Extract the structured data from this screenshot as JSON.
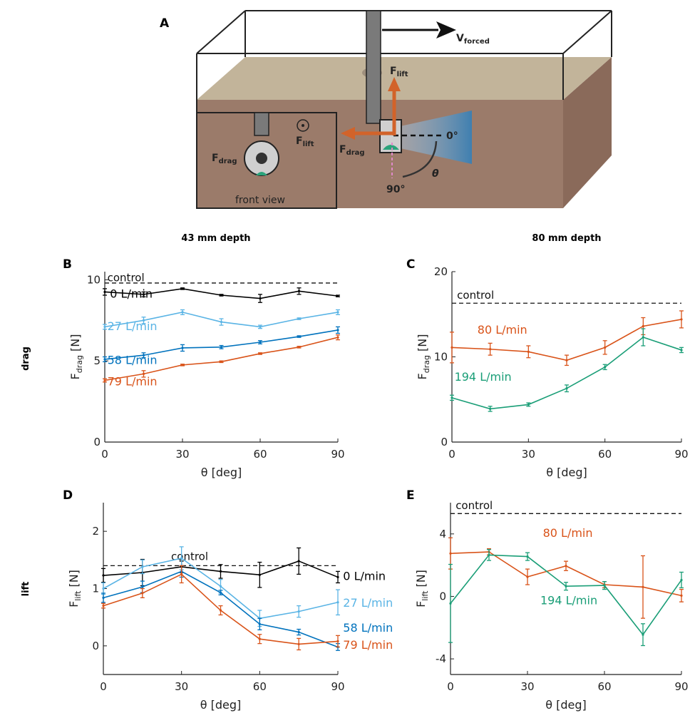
{
  "panel_labels": {
    "A": "A",
    "B": "B",
    "C": "C",
    "D": "D",
    "E": "E"
  },
  "column_headers": [
    "43 mm depth",
    "80 mm depth"
  ],
  "row_headers": [
    "drag",
    "lift"
  ],
  "diagram": {
    "v_label": "V",
    "v_sub": "forced",
    "flift_label": "F",
    "flift_sub": "lift",
    "fdrag_label": "F",
    "fdrag_sub": "drag",
    "front_flift_label": "F",
    "front_flift_sub": "lift",
    "front_fdrag_label": "F",
    "front_fdrag_sub": "drag",
    "angle0": "0°",
    "angle90": "90°",
    "theta": "θ",
    "front_view": "front view",
    "colors": {
      "sand": "#c2b49a",
      "soil": "#9b7b6a",
      "arrow": "#d2632a",
      "rod": "#7a7a7a",
      "green": "#2aa37a",
      "pink": "#e089c8",
      "light": "#5a8fb8"
    }
  },
  "chart_data": [
    {
      "id": "B",
      "type": "line",
      "xlabel": "θ [deg]",
      "ylabel": {
        "main": "F",
        "sub": "drag",
        "unit": " [N]"
      },
      "xlim": [
        0,
        90
      ],
      "ylim": [
        0,
        10.5
      ],
      "xticks": [
        0,
        30,
        60,
        90
      ],
      "yticks": [
        0,
        5,
        10
      ],
      "x": [
        0,
        15,
        30,
        45,
        60,
        75,
        90
      ],
      "control": {
        "label": "control",
        "value": 9.8
      },
      "series": [
        {
          "name": "0 L/min",
          "color": "#000000",
          "values": [
            9.25,
            9.1,
            9.45,
            9.05,
            8.85,
            9.3,
            9.0
          ],
          "err": [
            0.2,
            0.15,
            0.05,
            0.05,
            0.25,
            0.2,
            0.05
          ]
        },
        {
          "name": "27 L/min",
          "color": "#5ab4e5",
          "values": [
            7.1,
            7.5,
            8.0,
            7.4,
            7.1,
            7.6,
            8.0
          ],
          "err": [
            0.15,
            0.2,
            0.15,
            0.2,
            0.1,
            0.05,
            0.15
          ]
        },
        {
          "name": "58 L/min",
          "color": "#0072bd",
          "values": [
            5.1,
            5.35,
            5.8,
            5.85,
            6.15,
            6.5,
            6.9
          ],
          "err": [
            0.15,
            0.15,
            0.2,
            0.1,
            0.1,
            0.05,
            0.2
          ]
        },
        {
          "name": "79 L/min",
          "color": "#d95319",
          "values": [
            3.8,
            4.2,
            4.75,
            4.95,
            5.45,
            5.85,
            6.45
          ],
          "err": [
            0.1,
            0.2,
            0.05,
            0.05,
            0.05,
            0.05,
            0.15
          ]
        }
      ]
    },
    {
      "id": "C",
      "type": "line",
      "xlabel": "θ [deg]",
      "ylabel": {
        "main": "F",
        "sub": "drag",
        "unit": " [N]"
      },
      "xlim": [
        0,
        90
      ],
      "ylim": [
        0,
        20
      ],
      "xticks": [
        0,
        30,
        60,
        90
      ],
      "yticks": [
        0,
        10,
        20
      ],
      "x": [
        0,
        15,
        30,
        45,
        60,
        75,
        90
      ],
      "control": {
        "label": "control",
        "value": 16.3
      },
      "series": [
        {
          "name": "80 L/min",
          "color": "#d95319",
          "values": [
            11.1,
            10.9,
            10.6,
            9.6,
            11.1,
            13.6,
            14.4
          ],
          "err": [
            1.8,
            0.7,
            0.7,
            0.6,
            0.8,
            1.0,
            1.0
          ]
        },
        {
          "name": "194 L/min",
          "color": "#1a9e77",
          "values": [
            5.2,
            3.9,
            4.4,
            6.3,
            8.8,
            12.3,
            10.8
          ],
          "err": [
            0.3,
            0.3,
            0.2,
            0.4,
            0.3,
            1.0,
            0.3
          ]
        }
      ]
    },
    {
      "id": "D",
      "type": "line",
      "xlabel": "θ [deg]",
      "ylabel": {
        "main": "F",
        "sub": "lift",
        "unit": " [N]"
      },
      "xlim": [
        0,
        90
      ],
      "ylim": [
        -0.5,
        2.5
      ],
      "xticks": [
        0,
        30,
        60,
        90
      ],
      "yticks": [
        0,
        1,
        2
      ],
      "x": [
        0,
        15,
        30,
        45,
        60,
        75,
        90
      ],
      "control": {
        "label": "control",
        "value": 1.4
      },
      "series": [
        {
          "name": "0 L/min",
          "color": "#000000",
          "values": [
            1.23,
            1.28,
            1.38,
            1.3,
            1.24,
            1.48,
            1.2
          ],
          "err": [
            0.12,
            0.23,
            0.1,
            0.12,
            0.22,
            0.23,
            0.1
          ]
        },
        {
          "name": "27 L/min",
          "color": "#5ab4e5",
          "values": [
            1.0,
            1.38,
            1.53,
            1.04,
            0.48,
            0.6,
            0.76
          ],
          "err": [
            0.1,
            0.12,
            0.2,
            0.12,
            0.14,
            0.1,
            0.22
          ]
        },
        {
          "name": "58 L/min",
          "color": "#0072bd",
          "values": [
            0.84,
            1.03,
            1.3,
            0.93,
            0.38,
            0.24,
            -0.02
          ],
          "err": [
            0.08,
            0.1,
            0.1,
            0.04,
            0.1,
            0.05,
            0.06
          ]
        },
        {
          "name": "79 L/min",
          "color": "#d95319",
          "values": [
            0.7,
            0.92,
            1.25,
            0.62,
            0.12,
            0.03,
            0.08
          ],
          "err": [
            0.04,
            0.08,
            0.15,
            0.08,
            0.08,
            0.1,
            0.1
          ]
        }
      ]
    },
    {
      "id": "E",
      "type": "line",
      "xlabel": "θ [deg]",
      "ylabel": {
        "main": "F",
        "sub": "lift",
        "unit": " [N]"
      },
      "xlim": [
        0,
        90
      ],
      "ylim": [
        -5,
        6
      ],
      "xticks": [
        0,
        30,
        60,
        90
      ],
      "yticks": [
        -4,
        0,
        4
      ],
      "x": [
        0,
        15,
        30,
        45,
        60,
        75,
        90
      ],
      "control": {
        "label": "control",
        "value": 5.3
      },
      "series": [
        {
          "name": "80 L/min",
          "color": "#d95319",
          "values": [
            2.75,
            2.85,
            1.25,
            1.95,
            0.75,
            0.6,
            0.05
          ],
          "err": [
            1.0,
            0.2,
            0.5,
            0.3,
            0.2,
            2.0,
            0.4
          ]
        },
        {
          "name": "194 L/min",
          "color": "#1a9e77",
          "values": [
            -0.45,
            2.65,
            2.55,
            0.65,
            0.7,
            -2.45,
            1.05
          ],
          "err": [
            2.5,
            0.35,
            0.25,
            0.25,
            0.25,
            0.7,
            0.5
          ]
        }
      ]
    }
  ]
}
